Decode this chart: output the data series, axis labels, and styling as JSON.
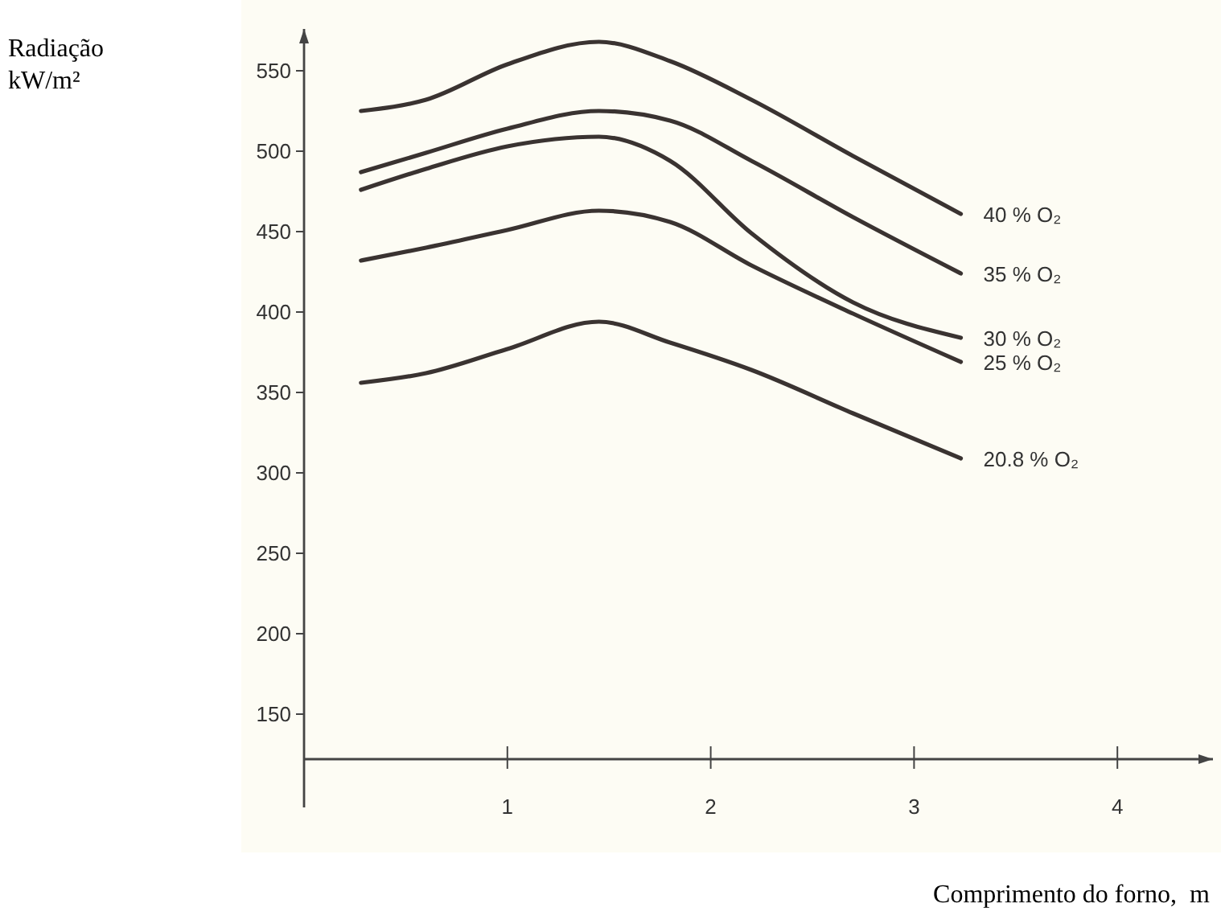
{
  "chart_data": {
    "type": "line",
    "annotations": [
      "Radiação kW/m²"
    ],
    "xlabel": "Comprimento do forno,  m",
    "xlim": [
      0,
      4.47
    ],
    "ylim": [
      122,
      576
    ],
    "xticks": [
      1,
      2,
      3,
      4
    ],
    "yticks": [
      150,
      200,
      250,
      300,
      350,
      400,
      450,
      500,
      550
    ],
    "x": [
      0.28,
      0.6,
      1.0,
      1.45,
      1.8,
      2.2,
      2.7,
      3.23
    ],
    "series": [
      {
        "name": "40 % O₂",
        "color": "#3a3331",
        "values": [
          525,
          532,
          554,
          568,
          556,
          532,
          497,
          461
        ]
      },
      {
        "name": "35 % O₂",
        "color": "#3a3331",
        "values": [
          487,
          499,
          514,
          525,
          519,
          494,
          459,
          424
        ]
      },
      {
        "name": "30 % O₂",
        "color": "#3a3331",
        "values": [
          476,
          489,
          503,
          509,
          494,
          449,
          406,
          384
        ]
      },
      {
        "name": "25 % O₂",
        "color": "#3a3331",
        "values": [
          432,
          440,
          451,
          463,
          456,
          429,
          399,
          369
        ]
      },
      {
        "name": "20.8 % O₂",
        "color": "#3a3331",
        "values": [
          356,
          362,
          377,
          394,
          381,
          364,
          337,
          309
        ]
      }
    ],
    "legend": false,
    "grid": false,
    "marker": "none",
    "line_style": "solid"
  }
}
